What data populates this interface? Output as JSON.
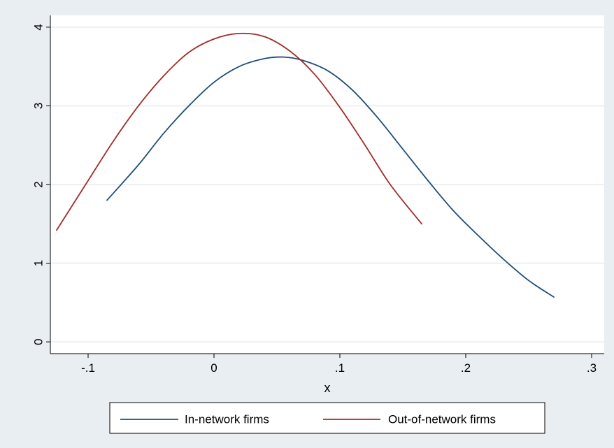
{
  "chart_data": {
    "type": "line",
    "title": "",
    "xlabel": "x",
    "ylabel": "",
    "xlim": [
      -0.13,
      0.31
    ],
    "ylim": [
      -0.15,
      4.15
    ],
    "x_ticks": [
      {
        "value": -0.1,
        "label": "-.1"
      },
      {
        "value": 0,
        "label": "0"
      },
      {
        "value": 0.1,
        "label": ".1"
      },
      {
        "value": 0.2,
        "label": ".2"
      },
      {
        "value": 0.3,
        "label": ".3"
      }
    ],
    "y_ticks": [
      {
        "value": 0,
        "label": "0"
      },
      {
        "value": 1,
        "label": "1"
      },
      {
        "value": 2,
        "label": "2"
      },
      {
        "value": 3,
        "label": "3"
      },
      {
        "value": 4,
        "label": "4"
      }
    ],
    "grid": "horizontal",
    "legend_position": "bottom",
    "series": [
      {
        "name": "In-network firms",
        "color": "#1f4e79",
        "x": [
          -0.085,
          -0.06,
          -0.04,
          -0.02,
          0.0,
          0.02,
          0.04,
          0.055,
          0.07,
          0.09,
          0.11,
          0.13,
          0.15,
          0.17,
          0.19,
          0.21,
          0.23,
          0.25,
          0.27
        ],
        "y": [
          1.8,
          2.25,
          2.65,
          3.0,
          3.3,
          3.5,
          3.6,
          3.62,
          3.58,
          3.45,
          3.2,
          2.85,
          2.45,
          2.05,
          1.67,
          1.35,
          1.05,
          0.78,
          0.57
        ]
      },
      {
        "name": "Out-of-network firms",
        "color": "#a52a2a",
        "x": [
          -0.125,
          -0.1,
          -0.08,
          -0.06,
          -0.04,
          -0.02,
          0.0,
          0.02,
          0.04,
          0.06,
          0.08,
          0.1,
          0.12,
          0.14,
          0.165
        ],
        "y": [
          1.42,
          2.05,
          2.55,
          3.0,
          3.38,
          3.68,
          3.85,
          3.92,
          3.88,
          3.7,
          3.4,
          2.98,
          2.5,
          2.0,
          1.5
        ]
      }
    ]
  }
}
